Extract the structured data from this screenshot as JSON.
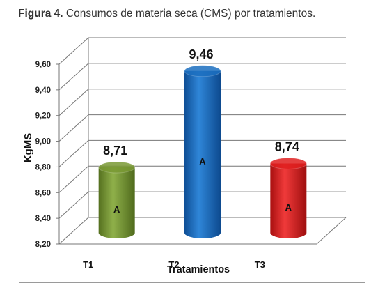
{
  "figure": {
    "label": "Figura 4.",
    "caption": " Consumos de materia seca (CMS) por tratamientos."
  },
  "chart_data": {
    "type": "bar",
    "style": "3d-cylinder",
    "categories": [
      "T1",
      "T2",
      "T3"
    ],
    "values": [
      8.71,
      9.46,
      8.74
    ],
    "value_labels": [
      "8,71",
      "9,46",
      "8,74"
    ],
    "group_letters": [
      "A",
      "A",
      "A"
    ],
    "bar_colors": [
      "#7a9a34",
      "#1c6fc0",
      "#e01f1f"
    ],
    "xlabel": "Tratamientos",
    "ylabel": "KgMS",
    "ylim": [
      8.2,
      9.6
    ],
    "yticks": [
      {
        "value": 8.2,
        "label": "8,20"
      },
      {
        "value": 8.4,
        "label": "8,40"
      },
      {
        "value": 8.6,
        "label": "8,60"
      },
      {
        "value": 8.8,
        "label": "8,80"
      },
      {
        "value": 9.0,
        "label": "9,00"
      },
      {
        "value": 9.2,
        "label": "9,20"
      },
      {
        "value": 9.4,
        "label": "9,40"
      },
      {
        "value": 9.6,
        "label": "9,60"
      }
    ],
    "grid": true,
    "legend": "none"
  }
}
